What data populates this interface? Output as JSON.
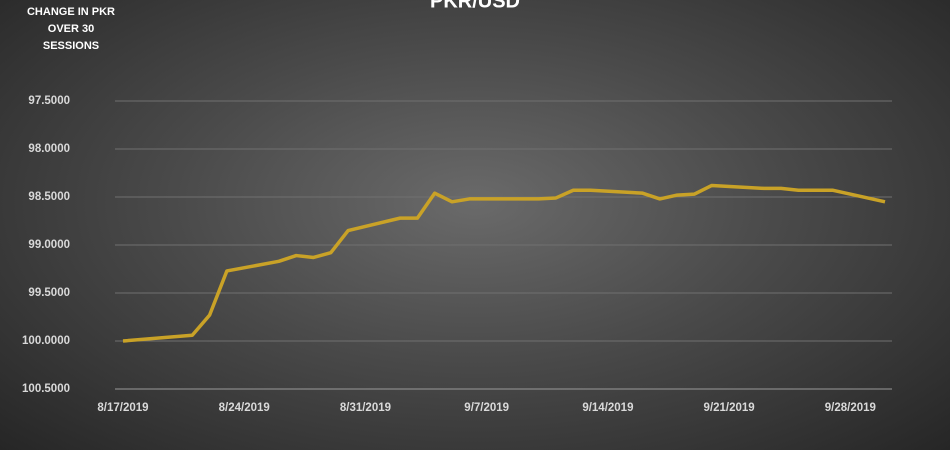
{
  "chart_data": {
    "type": "line",
    "title": "PKR/USD",
    "ylabel": "CHANGE IN PKR OVER 30 SESSIONS",
    "x": [
      "8/17/2019",
      "8/21/2019",
      "8/22/2019",
      "8/23/2019",
      "8/26/2019",
      "8/27/2019",
      "8/28/2019",
      "8/29/2019",
      "8/30/2019",
      "9/2/2019",
      "9/3/2019",
      "9/4/2019",
      "9/5/2019",
      "9/6/2019",
      "9/9/2019",
      "9/10/2019",
      "9/11/2019",
      "9/12/2019",
      "9/13/2019",
      "9/16/2019",
      "9/17/2019",
      "9/18/2019",
      "9/19/2019",
      "9/20/2019",
      "9/23/2019",
      "9/24/2019",
      "9/25/2019",
      "9/26/2019",
      "9/27/2019",
      "9/30/2019"
    ],
    "series": [
      {
        "name": "PKR/USD",
        "color": "#c9a227",
        "values": [
          100.0,
          99.94,
          99.73,
          99.27,
          99.17,
          99.11,
          99.13,
          99.08,
          98.85,
          98.72,
          98.72,
          98.46,
          98.55,
          98.52,
          98.52,
          98.52,
          98.51,
          98.43,
          98.43,
          98.46,
          98.52,
          98.48,
          98.47,
          98.38,
          98.41,
          98.41,
          98.43,
          98.43,
          98.43,
          98.55
        ]
      }
    ],
    "xlim": [
      "8/17/2019",
      "9/30/2019"
    ],
    "xticks": [
      "8/17/2019",
      "8/24/2019",
      "8/31/2019",
      "9/7/2019",
      "9/14/2019",
      "9/21/2019",
      "9/28/2019"
    ],
    "ylim": [
      97.5,
      100.5
    ],
    "y_inverted": true,
    "yticks": [
      {
        "value": 97.5,
        "label": "97.5000"
      },
      {
        "value": 98.0,
        "label": "98.0000"
      },
      {
        "value": 98.5,
        "label": "98.5000"
      },
      {
        "value": 99.0,
        "label": "99.0000"
      },
      {
        "value": 99.5,
        "label": "99.5000"
      },
      {
        "value": 100.0,
        "label": "100.0000"
      },
      {
        "value": 100.5,
        "label": "100.5000"
      }
    ],
    "grid": true
  }
}
